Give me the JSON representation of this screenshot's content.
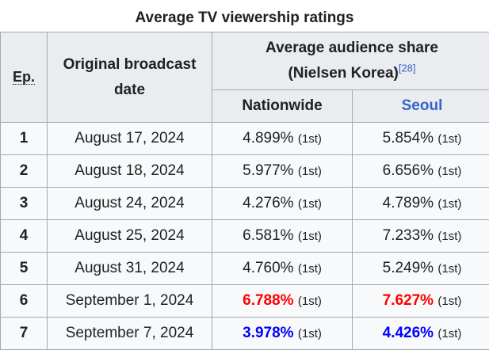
{
  "caption": "Average TV viewership ratings",
  "headers": {
    "ep": "Ep.",
    "date_line1": "Original broadcast",
    "date_line2": "date",
    "share_line1": "Average audience share",
    "share_line2": "(Nielsen Korea)",
    "share_ref": "[28]",
    "nationwide": "Nationwide",
    "seoul": "Seoul"
  },
  "rows": [
    {
      "ep": "1",
      "date": "August 17, 2024",
      "nationwide": "4.899%",
      "nationwide_rank": "(1st)",
      "seoul": "5.854%",
      "seoul_rank": "(1st)"
    },
    {
      "ep": "2",
      "date": "August 18, 2024",
      "nationwide": "5.977%",
      "nationwide_rank": "(1st)",
      "seoul": "6.656%",
      "seoul_rank": "(1st)"
    },
    {
      "ep": "3",
      "date": "August 24, 2024",
      "nationwide": "4.276%",
      "nationwide_rank": "(1st)",
      "seoul": "4.789%",
      "seoul_rank": "(1st)"
    },
    {
      "ep": "4",
      "date": "August 25, 2024",
      "nationwide": "6.581%",
      "nationwide_rank": "(1st)",
      "seoul": "7.233%",
      "seoul_rank": "(1st)"
    },
    {
      "ep": "5",
      "date": "August 31, 2024",
      "nationwide": "4.760%",
      "nationwide_rank": "(1st)",
      "seoul": "5.249%",
      "seoul_rank": "(1st)"
    },
    {
      "ep": "6",
      "date": "September 1, 2024",
      "nationwide": "6.788%",
      "nationwide_rank": "(1st)",
      "seoul": "7.627%",
      "seoul_rank": "(1st)"
    },
    {
      "ep": "7",
      "date": "September 7, 2024",
      "nationwide": "3.978%",
      "nationwide_rank": "(1st)",
      "seoul": "4.426%",
      "seoul_rank": "(1st)"
    }
  ],
  "highlight_colors": {
    "highest": "#ff0000",
    "lowest": "#0000ff",
    "link": "#3366cc"
  }
}
